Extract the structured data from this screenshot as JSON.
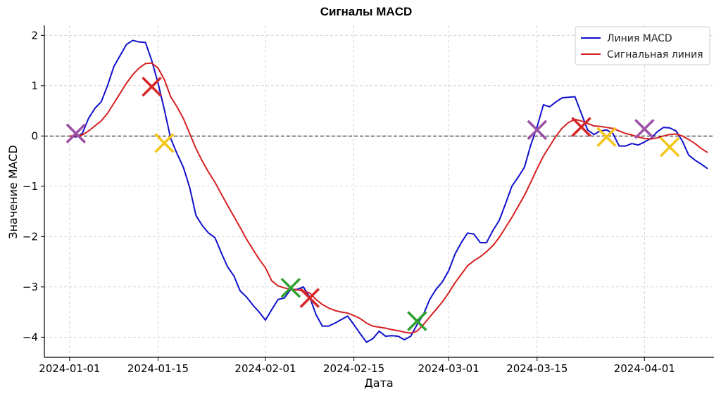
{
  "chart_data": {
    "type": "line",
    "title": "Сигналы MACD",
    "xlabel": "Дата",
    "ylabel": "Значение MACD",
    "xlim": [
      "2023-12-28",
      "2024-04-12"
    ],
    "ylim": [
      -4.4,
      2.2
    ],
    "x_ticks": [
      "2024-01-01",
      "2024-01-15",
      "2024-02-01",
      "2024-02-15",
      "2024-03-01",
      "2024-03-15",
      "2024-04-01"
    ],
    "y_ticks": [
      2,
      1,
      0,
      -1,
      -2,
      -3,
      -4
    ],
    "y_tick_labels": [
      "2",
      "1",
      "0",
      "−1",
      "−2",
      "−3",
      "−4"
    ],
    "grid": true,
    "legend_position": "top-right",
    "zero_line": true,
    "series": [
      {
        "name": "Линия MACD",
        "color": "#1010cc",
        "points": [
          [
            "2024-01-01",
            0.0
          ],
          [
            "2024-01-02",
            -0.02
          ],
          [
            "2024-01-03",
            0.05
          ],
          [
            "2024-01-04",
            0.35
          ],
          [
            "2024-01-05",
            0.55
          ],
          [
            "2024-01-06",
            0.68
          ],
          [
            "2024-01-07",
            1.0
          ],
          [
            "2024-01-08",
            1.38
          ],
          [
            "2024-01-09",
            1.6
          ],
          [
            "2024-01-10",
            1.82
          ],
          [
            "2024-01-11",
            1.9
          ],
          [
            "2024-01-12",
            1.87
          ],
          [
            "2024-01-13",
            1.86
          ],
          [
            "2024-01-14",
            1.5
          ],
          [
            "2024-01-15",
            1.05
          ],
          [
            "2024-01-16",
            0.52
          ],
          [
            "2024-01-17",
            -0.05
          ],
          [
            "2024-01-18",
            -0.35
          ],
          [
            "2024-01-19",
            -0.62
          ],
          [
            "2024-01-20",
            -1.02
          ],
          [
            "2024-01-21",
            -1.58
          ],
          [
            "2024-01-22",
            -1.78
          ],
          [
            "2024-01-23",
            -1.93
          ],
          [
            "2024-01-24",
            -2.02
          ],
          [
            "2024-01-25",
            -2.32
          ],
          [
            "2024-01-26",
            -2.6
          ],
          [
            "2024-01-27",
            -2.78
          ],
          [
            "2024-01-28",
            -3.08
          ],
          [
            "2024-01-29",
            -3.2
          ],
          [
            "2024-01-30",
            -3.36
          ],
          [
            "2024-01-31",
            -3.5
          ],
          [
            "2024-02-01",
            -3.66
          ],
          [
            "2024-02-02",
            -3.45
          ],
          [
            "2024-02-03",
            -3.25
          ],
          [
            "2024-02-04",
            -3.22
          ],
          [
            "2024-02-05",
            -3.05
          ],
          [
            "2024-02-06",
            -3.05
          ],
          [
            "2024-02-07",
            -3.0
          ],
          [
            "2024-02-08",
            -3.2
          ],
          [
            "2024-02-09",
            -3.55
          ],
          [
            "2024-02-10",
            -3.78
          ],
          [
            "2024-02-11",
            -3.78
          ],
          [
            "2024-02-12",
            -3.72
          ],
          [
            "2024-02-13",
            -3.65
          ],
          [
            "2024-02-14",
            -3.58
          ],
          [
            "2024-02-15",
            -3.75
          ],
          [
            "2024-02-16",
            -3.93
          ],
          [
            "2024-02-17",
            -4.1
          ],
          [
            "2024-02-18",
            -4.03
          ],
          [
            "2024-02-19",
            -3.88
          ],
          [
            "2024-02-20",
            -3.98
          ],
          [
            "2024-02-21",
            -3.97
          ],
          [
            "2024-02-22",
            -3.98
          ],
          [
            "2024-02-23",
            -4.05
          ],
          [
            "2024-02-24",
            -3.98
          ],
          [
            "2024-02-25",
            -3.75
          ],
          [
            "2024-02-26",
            -3.55
          ],
          [
            "2024-02-27",
            -3.25
          ],
          [
            "2024-02-28",
            -3.05
          ],
          [
            "2024-02-29",
            -2.9
          ],
          [
            "2024-03-01",
            -2.68
          ],
          [
            "2024-03-02",
            -2.35
          ],
          [
            "2024-03-03",
            -2.12
          ],
          [
            "2024-03-04",
            -1.93
          ],
          [
            "2024-03-05",
            -1.95
          ],
          [
            "2024-03-06",
            -2.12
          ],
          [
            "2024-03-07",
            -2.12
          ],
          [
            "2024-03-08",
            -1.88
          ],
          [
            "2024-03-09",
            -1.68
          ],
          [
            "2024-03-10",
            -1.35
          ],
          [
            "2024-03-11",
            -1.0
          ],
          [
            "2024-03-12",
            -0.82
          ],
          [
            "2024-03-13",
            -0.62
          ],
          [
            "2024-03-14",
            -0.18
          ],
          [
            "2024-03-15",
            0.18
          ],
          [
            "2024-03-16",
            0.62
          ],
          [
            "2024-03-17",
            0.58
          ],
          [
            "2024-03-18",
            0.68
          ],
          [
            "2024-03-19",
            0.76
          ],
          [
            "2024-03-20",
            0.77
          ],
          [
            "2024-03-21",
            0.78
          ],
          [
            "2024-03-22",
            0.45
          ],
          [
            "2024-03-23",
            0.12
          ],
          [
            "2024-03-24",
            0.03
          ],
          [
            "2024-03-25",
            0.1
          ],
          [
            "2024-03-26",
            0.12
          ],
          [
            "2024-03-27",
            0.05
          ],
          [
            "2024-03-28",
            -0.2
          ],
          [
            "2024-03-29",
            -0.2
          ],
          [
            "2024-03-30",
            -0.15
          ],
          [
            "2024-03-31",
            -0.18
          ],
          [
            "2024-04-01",
            -0.12
          ],
          [
            "2024-04-02",
            -0.05
          ],
          [
            "2024-04-03",
            0.08
          ],
          [
            "2024-04-04",
            0.17
          ],
          [
            "2024-04-05",
            0.16
          ],
          [
            "2024-04-06",
            0.1
          ],
          [
            "2024-04-07",
            -0.1
          ],
          [
            "2024-04-08",
            -0.38
          ],
          [
            "2024-04-09",
            -0.48
          ],
          [
            "2024-04-10",
            -0.56
          ],
          [
            "2024-04-11",
            -0.65
          ]
        ]
      },
      {
        "name": "Сигнальная линия",
        "color": "#d62020",
        "points": [
          [
            "2024-01-01",
            0.0
          ],
          [
            "2024-01-02",
            0.0
          ],
          [
            "2024-01-03",
            0.02
          ],
          [
            "2024-01-04",
            0.1
          ],
          [
            "2024-01-05",
            0.2
          ],
          [
            "2024-01-06",
            0.3
          ],
          [
            "2024-01-07",
            0.45
          ],
          [
            "2024-01-08",
            0.65
          ],
          [
            "2024-01-09",
            0.85
          ],
          [
            "2024-01-10",
            1.05
          ],
          [
            "2024-01-11",
            1.22
          ],
          [
            "2024-01-12",
            1.35
          ],
          [
            "2024-01-13",
            1.44
          ],
          [
            "2024-01-14",
            1.45
          ],
          [
            "2024-01-15",
            1.35
          ],
          [
            "2024-01-16",
            1.12
          ],
          [
            "2024-01-17",
            0.78
          ],
          [
            "2024-01-18",
            0.58
          ],
          [
            "2024-01-19",
            0.35
          ],
          [
            "2024-01-20",
            0.05
          ],
          [
            "2024-01-21",
            -0.25
          ],
          [
            "2024-01-22",
            -0.5
          ],
          [
            "2024-01-23",
            -0.72
          ],
          [
            "2024-01-24",
            -0.92
          ],
          [
            "2024-01-25",
            -1.15
          ],
          [
            "2024-01-26",
            -1.38
          ],
          [
            "2024-01-27",
            -1.6
          ],
          [
            "2024-01-28",
            -1.82
          ],
          [
            "2024-01-29",
            -2.05
          ],
          [
            "2024-01-30",
            -2.25
          ],
          [
            "2024-01-31",
            -2.45
          ],
          [
            "2024-02-01",
            -2.62
          ],
          [
            "2024-02-02",
            -2.88
          ],
          [
            "2024-02-03",
            -2.98
          ],
          [
            "2024-02-04",
            -3.02
          ],
          [
            "2024-02-05",
            -3.05
          ],
          [
            "2024-02-06",
            -3.06
          ],
          [
            "2024-02-07",
            -3.08
          ],
          [
            "2024-02-08",
            -3.12
          ],
          [
            "2024-02-09",
            -3.25
          ],
          [
            "2024-02-10",
            -3.35
          ],
          [
            "2024-02-11",
            -3.42
          ],
          [
            "2024-02-12",
            -3.47
          ],
          [
            "2024-02-13",
            -3.5
          ],
          [
            "2024-02-14",
            -3.52
          ],
          [
            "2024-02-15",
            -3.57
          ],
          [
            "2024-02-16",
            -3.63
          ],
          [
            "2024-02-17",
            -3.72
          ],
          [
            "2024-02-18",
            -3.78
          ],
          [
            "2024-02-19",
            -3.8
          ],
          [
            "2024-02-20",
            -3.82
          ],
          [
            "2024-02-21",
            -3.85
          ],
          [
            "2024-02-22",
            -3.87
          ],
          [
            "2024-02-23",
            -3.9
          ],
          [
            "2024-02-24",
            -3.92
          ],
          [
            "2024-02-25",
            -3.88
          ],
          [
            "2024-02-26",
            -3.75
          ],
          [
            "2024-02-27",
            -3.6
          ],
          [
            "2024-02-28",
            -3.45
          ],
          [
            "2024-02-29",
            -3.3
          ],
          [
            "2024-03-01",
            -3.12
          ],
          [
            "2024-03-02",
            -2.92
          ],
          [
            "2024-03-03",
            -2.75
          ],
          [
            "2024-03-04",
            -2.58
          ],
          [
            "2024-03-05",
            -2.48
          ],
          [
            "2024-03-06",
            -2.4
          ],
          [
            "2024-03-07",
            -2.3
          ],
          [
            "2024-03-08",
            -2.18
          ],
          [
            "2024-03-09",
            -2.02
          ],
          [
            "2024-03-10",
            -1.82
          ],
          [
            "2024-03-11",
            -1.62
          ],
          [
            "2024-03-12",
            -1.4
          ],
          [
            "2024-03-13",
            -1.18
          ],
          [
            "2024-03-14",
            -0.92
          ],
          [
            "2024-03-15",
            -0.65
          ],
          [
            "2024-03-16",
            -0.4
          ],
          [
            "2024-03-17",
            -0.2
          ],
          [
            "2024-03-18",
            0.0
          ],
          [
            "2024-03-19",
            0.16
          ],
          [
            "2024-03-20",
            0.27
          ],
          [
            "2024-03-21",
            0.33
          ],
          [
            "2024-03-22",
            0.3
          ],
          [
            "2024-03-23",
            0.25
          ],
          [
            "2024-03-24",
            0.2
          ],
          [
            "2024-03-25",
            0.19
          ],
          [
            "2024-03-26",
            0.17
          ],
          [
            "2024-03-27",
            0.15
          ],
          [
            "2024-03-28",
            0.1
          ],
          [
            "2024-03-29",
            0.05
          ],
          [
            "2024-03-30",
            0.02
          ],
          [
            "2024-03-31",
            -0.02
          ],
          [
            "2024-04-01",
            -0.05
          ],
          [
            "2024-04-02",
            -0.06
          ],
          [
            "2024-04-03",
            -0.04
          ],
          [
            "2024-04-04",
            0.0
          ],
          [
            "2024-04-05",
            0.03
          ],
          [
            "2024-04-06",
            0.04
          ],
          [
            "2024-04-07",
            0.0
          ],
          [
            "2024-04-08",
            -0.07
          ],
          [
            "2024-04-09",
            -0.15
          ],
          [
            "2024-04-10",
            -0.25
          ],
          [
            "2024-04-11",
            -0.33
          ]
        ]
      }
    ],
    "markers": [
      {
        "x": "2024-01-02",
        "y": 0.05,
        "color": "#9b4fa6"
      },
      {
        "x": "2024-01-14",
        "y": 0.98,
        "color": "#d62728"
      },
      {
        "x": "2024-01-16",
        "y": -0.14,
        "color": "#f5c518"
      },
      {
        "x": "2024-02-05",
        "y": -3.02,
        "color": "#2ca02c"
      },
      {
        "x": "2024-02-08",
        "y": -3.22,
        "color": "#d62728"
      },
      {
        "x": "2024-02-25",
        "y": -3.68,
        "color": "#2ca02c"
      },
      {
        "x": "2024-03-15",
        "y": 0.12,
        "color": "#9b4fa6"
      },
      {
        "x": "2024-03-22",
        "y": 0.18,
        "color": "#d62728"
      },
      {
        "x": "2024-03-26",
        "y": -0.02,
        "color": "#f5c518"
      },
      {
        "x": "2024-04-01",
        "y": 0.14,
        "color": "#9b4fa6"
      },
      {
        "x": "2024-04-05",
        "y": -0.22,
        "color": "#f5c518"
      }
    ]
  }
}
